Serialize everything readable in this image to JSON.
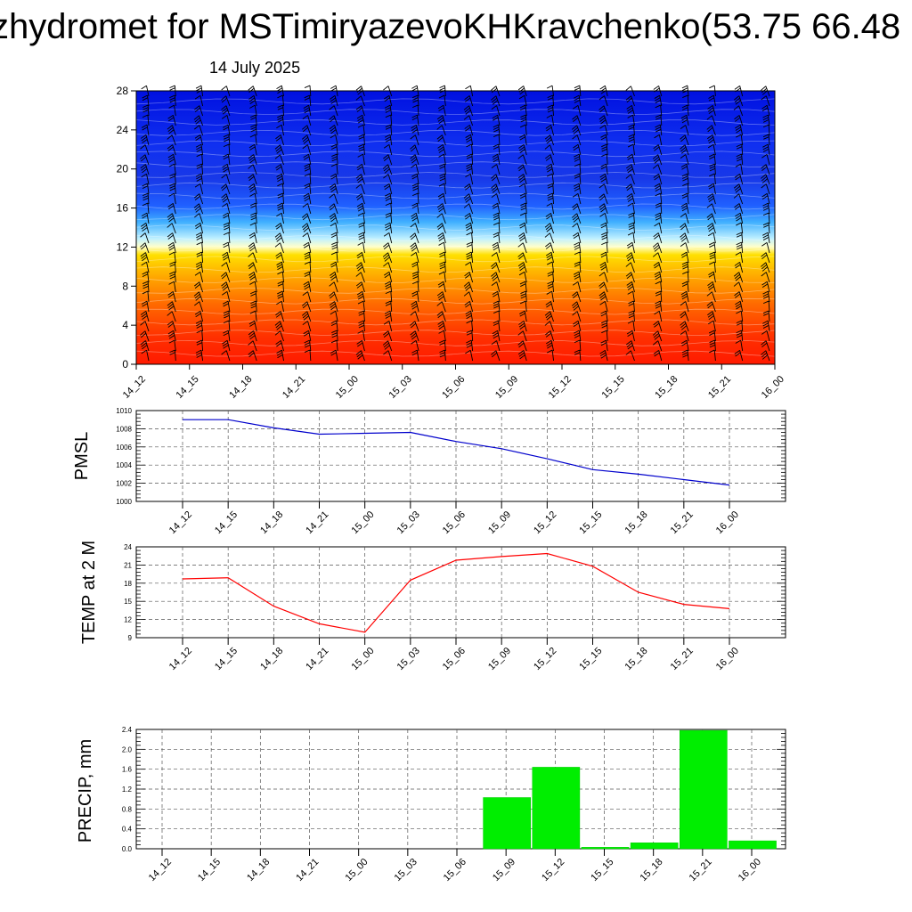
{
  "header": {
    "title": "zhydromet for MSTimiryazevoKHKravchenko(53.75 66.48",
    "date": "14 July 2025"
  },
  "colors": {
    "pmsl_line": "#0000cc",
    "temp_line": "#ff0000",
    "precip_bar": "#00ee00",
    "warm": "#ff2000",
    "cold": "#0010e0"
  },
  "chart_data": [
    {
      "type": "heatmap",
      "name": "cross-section",
      "x": [
        "14_12",
        "14_15",
        "14_18",
        "14_21",
        "15_00",
        "15_03",
        "15_06",
        "15_09",
        "15_12",
        "15_15",
        "15_18",
        "15_21",
        "16_00"
      ],
      "yticks": [
        0,
        4,
        8,
        12,
        16,
        20,
        24,
        28
      ],
      "ylim": [
        0,
        28
      ],
      "overlay": "wind barbs",
      "grid": false
    },
    {
      "type": "line",
      "ylabel": "PMSL",
      "x": [
        "14_12",
        "14_15",
        "14_18",
        "14_21",
        "15_00",
        "15_03",
        "15_06",
        "15_09",
        "15_12",
        "15_15",
        "15_18",
        "15_21",
        "16_00"
      ],
      "values": [
        1009.0,
        1009.0,
        1008.1,
        1007.4,
        1007.5,
        1007.6,
        1006.6,
        1005.8,
        1004.7,
        1003.5,
        1003.0,
        1002.4,
        1001.8
      ],
      "ylim": [
        1000,
        1010
      ],
      "yticks": [
        1000,
        1002,
        1004,
        1006,
        1008,
        1010
      ],
      "grid": true
    },
    {
      "type": "line",
      "ylabel": "TEMP at 2 M",
      "x": [
        "14_12",
        "14_15",
        "14_18",
        "14_21",
        "15_00",
        "15_03",
        "15_06",
        "15_09",
        "15_12",
        "15_15",
        "15_18",
        "15_21",
        "16_00"
      ],
      "values": [
        18.7,
        18.9,
        14.2,
        11.3,
        9.9,
        18.5,
        21.8,
        22.4,
        22.9,
        20.8,
        16.5,
        14.5,
        13.8
      ],
      "ylim": [
        9,
        24
      ],
      "yticks": [
        9,
        12,
        15,
        18,
        21,
        24
      ],
      "grid": true
    },
    {
      "type": "bar",
      "ylabel": "PRECIP, mm",
      "categories": [
        "14_12",
        "14_15",
        "14_18",
        "14_21",
        "15_00",
        "15_03",
        "15_06",
        "15_09",
        "15_12",
        "15_15",
        "15_18",
        "15_21",
        "16_00"
      ],
      "values": [
        0,
        0,
        0,
        0,
        0,
        0,
        0,
        1.03,
        1.64,
        0.03,
        0.12,
        2.38,
        0.16
      ],
      "ylim": [
        0,
        2.4
      ],
      "yticks": [
        "0.0",
        "0.4",
        "0.8",
        "1.2",
        "1.6",
        "2.0",
        "2.4"
      ],
      "grid": true
    }
  ]
}
